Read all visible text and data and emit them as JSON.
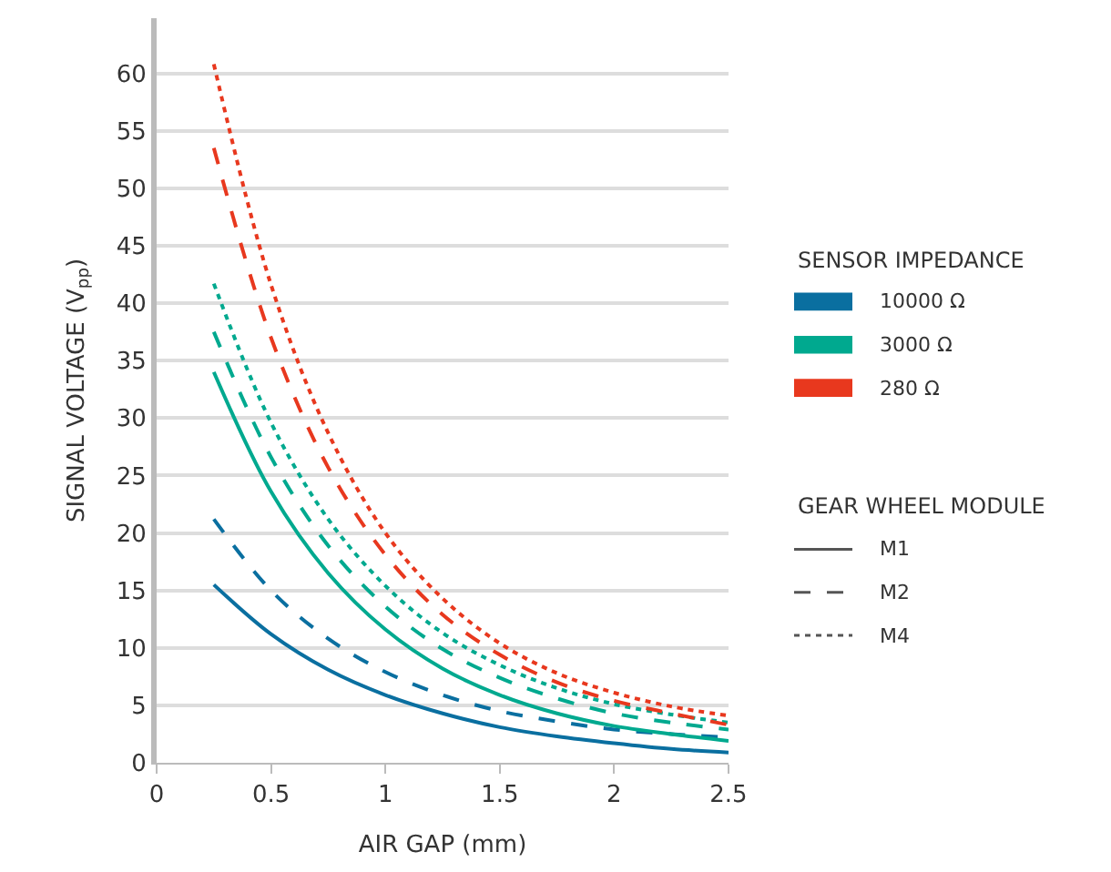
{
  "chart_data": {
    "type": "line",
    "xlabel": "AIR GAP (mm)",
    "ylabel": "SIGNAL VOLTAGE (V$_{pp}$)",
    "x": [
      0.25,
      0.5,
      0.75,
      1,
      1.25,
      1.5,
      1.75,
      2,
      2.25,
      2.5
    ],
    "series": [
      {
        "color": "#0a6fa0",
        "line_style": "solid",
        "values": [
          15.5,
          11.2,
          8.1,
          5.9,
          4.3,
          3.1,
          2.3,
          1.7,
          1.2,
          0.9
        ]
      },
      {
        "color": "#0a6fa0",
        "line_style": "dashed",
        "values": [
          21.2,
          15.0,
          10.8,
          7.9,
          5.9,
          4.5,
          3.6,
          2.9,
          2.5,
          2.2
        ]
      },
      {
        "color": "#0a6fa0",
        "line_style": "dotted",
        "values": [
          null,
          null,
          null,
          null,
          null,
          null,
          null,
          null,
          null,
          null
        ]
      },
      {
        "color": "#00a98f",
        "line_style": "solid",
        "values": [
          34,
          23.6,
          16.5,
          11.6,
          8.2,
          5.9,
          4.3,
          3.2,
          2.5,
          1.9
        ]
      },
      {
        "color": "#00a98f",
        "line_style": "dashed",
        "values": [
          37.5,
          26.6,
          18.9,
          13.6,
          9.9,
          7.4,
          5.6,
          4.3,
          3.5,
          2.9
        ]
      },
      {
        "color": "#00a98f",
        "line_style": "dotted",
        "values": [
          41.7,
          29.6,
          21.2,
          15.4,
          11.3,
          8.5,
          6.5,
          5.1,
          4.2,
          3.5
        ]
      },
      {
        "color": "#e8381e",
        "line_style": "solid",
        "values": [
          null,
          null,
          null,
          null,
          null,
          null,
          null,
          null,
          null,
          null
        ]
      },
      {
        "color": "#e8381e",
        "line_style": "dashed",
        "values": [
          53.5,
          37.0,
          25.7,
          18.1,
          12.9,
          9.4,
          7.0,
          5.4,
          4.3,
          3.3
        ]
      },
      {
        "color": "#e8381e",
        "line_style": "dotted",
        "values": [
          60.8,
          41.6,
          28.7,
          20.0,
          14.3,
          10.4,
          7.8,
          6.1,
          4.9,
          4.1
        ]
      }
    ],
    "xlim": [
      0,
      2.5
    ],
    "xticks": [
      0,
      0.5,
      1,
      1.5,
      2,
      2.5
    ],
    "ylim": [
      0,
      64.8
    ],
    "yticks": [
      0,
      5,
      10,
      15,
      20,
      25,
      30,
      35,
      40,
      45,
      50,
      55,
      60
    ],
    "grid": "y",
    "annotations": [
      "SENSOR IMPEDANCE",
      "10000 Ω",
      "3000 Ω",
      "280 Ω",
      "GEAR WHEEL MODULE",
      "M1",
      "M2",
      "M4"
    ]
  }
}
